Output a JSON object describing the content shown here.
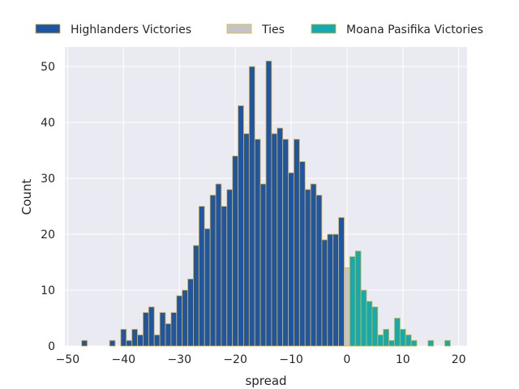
{
  "chart_data": {
    "type": "bar",
    "xlabel": "spread",
    "ylabel": "Count",
    "xlim": [
      -50.5,
      21.5
    ],
    "ylim": [
      0,
      53.5
    ],
    "xticks": [
      -50,
      -40,
      -30,
      -20,
      -10,
      0,
      10,
      20
    ],
    "yticks": [
      0,
      10,
      20,
      30,
      40,
      50
    ],
    "grid": true,
    "legend_position": "top",
    "bar_edge_color": "#E8B32B",
    "background_color": "#EAEAF2",
    "series": [
      {
        "name": "Highlanders Victories",
        "color": "#1F56A3",
        "bins": [
          {
            "x": -47,
            "count": 1
          },
          {
            "x": -42,
            "count": 1
          },
          {
            "x": -40,
            "count": 3
          },
          {
            "x": -39,
            "count": 1
          },
          {
            "x": -38,
            "count": 3
          },
          {
            "x": -37,
            "count": 2
          },
          {
            "x": -36,
            "count": 6
          },
          {
            "x": -35,
            "count": 7
          },
          {
            "x": -34,
            "count": 2
          },
          {
            "x": -33,
            "count": 6
          },
          {
            "x": -32,
            "count": 4
          },
          {
            "x": -31,
            "count": 6
          },
          {
            "x": -30,
            "count": 9
          },
          {
            "x": -29,
            "count": 10
          },
          {
            "x": -28,
            "count": 12
          },
          {
            "x": -27,
            "count": 18
          },
          {
            "x": -26,
            "count": 25
          },
          {
            "x": -25,
            "count": 21
          },
          {
            "x": -24,
            "count": 27
          },
          {
            "x": -23,
            "count": 29
          },
          {
            "x": -22,
            "count": 25
          },
          {
            "x": -21,
            "count": 28
          },
          {
            "x": -20,
            "count": 34
          },
          {
            "x": -19,
            "count": 43
          },
          {
            "x": -18,
            "count": 38
          },
          {
            "x": -17,
            "count": 50
          },
          {
            "x": -16,
            "count": 37
          },
          {
            "x": -15,
            "count": 29
          },
          {
            "x": -14,
            "count": 51
          },
          {
            "x": -13,
            "count": 38
          },
          {
            "x": -12,
            "count": 39
          },
          {
            "x": -11,
            "count": 37
          },
          {
            "x": -10,
            "count": 31
          },
          {
            "x": -9,
            "count": 37
          },
          {
            "x": -8,
            "count": 33
          },
          {
            "x": -7,
            "count": 28
          },
          {
            "x": -6,
            "count": 29
          },
          {
            "x": -5,
            "count": 27
          },
          {
            "x": -4,
            "count": 19
          },
          {
            "x": -3,
            "count": 20
          },
          {
            "x": -2,
            "count": 20
          },
          {
            "x": -1,
            "count": 23
          }
        ]
      },
      {
        "name": "Ties",
        "color": "#C4C4C4",
        "bins": [
          {
            "x": 0,
            "count": 14
          }
        ]
      },
      {
        "name": "Moana Pasifika Victories",
        "color": "#14AAB0",
        "bins": [
          {
            "x": 1,
            "count": 16
          },
          {
            "x": 2,
            "count": 17
          },
          {
            "x": 3,
            "count": 10
          },
          {
            "x": 4,
            "count": 8
          },
          {
            "x": 5,
            "count": 7
          },
          {
            "x": 6,
            "count": 2
          },
          {
            "x": 7,
            "count": 3
          },
          {
            "x": 8,
            "count": 1
          },
          {
            "x": 9,
            "count": 5
          },
          {
            "x": 10,
            "count": 3
          },
          {
            "x": 11,
            "count": 2
          },
          {
            "x": 12,
            "count": 1
          },
          {
            "x": 15,
            "count": 1
          },
          {
            "x": 18,
            "count": 1
          }
        ]
      }
    ]
  }
}
